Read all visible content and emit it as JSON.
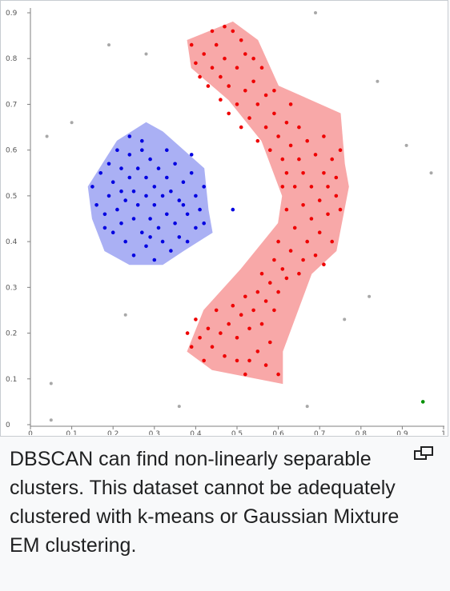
{
  "figure": {
    "caption": "DBSCAN can find non-linearly separable clusters. This dataset cannot be adequately clustered with k-means or Gaussian Mixture EM clustering.",
    "enlarge_icon": "enlarge-icon"
  },
  "chart_data": {
    "type": "scatter",
    "title": "",
    "xlabel": "",
    "ylabel": "",
    "xlim": [
      0,
      1
    ],
    "ylim": [
      0,
      0.9
    ],
    "xticks": [
      "0",
      "0.1",
      "0.2",
      "0.3",
      "0.4",
      "0.5",
      "0.6",
      "0.7",
      "0.8",
      "0.9",
      "1"
    ],
    "yticks": [
      "0",
      "0.1",
      "0.2",
      "0.3",
      "0.4",
      "0.5",
      "0.6",
      "0.7",
      "0.8",
      "0.9"
    ],
    "grid": false,
    "colors": {
      "cluster_1": "#0000e0",
      "cluster_2": "#ee0000",
      "cluster_3": "#009000",
      "noise": "#a8a8a8",
      "hull_1": "#aab0f4",
      "hull_2": "#f8a8a8"
    },
    "hulls": [
      {
        "cluster": "cluster_1",
        "polygon": [
          [
            0.14,
            0.52
          ],
          [
            0.21,
            0.62
          ],
          [
            0.28,
            0.66
          ],
          [
            0.32,
            0.64
          ],
          [
            0.42,
            0.56
          ],
          [
            0.43,
            0.47
          ],
          [
            0.44,
            0.42
          ],
          [
            0.37,
            0.38
          ],
          [
            0.32,
            0.35
          ],
          [
            0.24,
            0.35
          ],
          [
            0.18,
            0.38
          ],
          [
            0.15,
            0.45
          ]
        ]
      },
      {
        "cluster": "cluster_2",
        "polygon": [
          [
            0.38,
            0.84
          ],
          [
            0.49,
            0.88
          ],
          [
            0.55,
            0.84
          ],
          [
            0.6,
            0.74
          ],
          [
            0.75,
            0.68
          ],
          [
            0.76,
            0.57
          ],
          [
            0.77,
            0.52
          ],
          [
            0.74,
            0.38
          ],
          [
            0.68,
            0.33
          ],
          [
            0.61,
            0.16
          ],
          [
            0.61,
            0.09
          ],
          [
            0.44,
            0.12
          ],
          [
            0.38,
            0.16
          ],
          [
            0.42,
            0.25
          ],
          [
            0.51,
            0.34
          ],
          [
            0.6,
            0.44
          ],
          [
            0.61,
            0.5
          ],
          [
            0.56,
            0.62
          ],
          [
            0.48,
            0.71
          ],
          [
            0.39,
            0.78
          ]
        ]
      }
    ],
    "series": [
      {
        "name": "",
        "color_key": "cluster_1",
        "points": [
          [
            0.15,
            0.52
          ],
          [
            0.16,
            0.48
          ],
          [
            0.17,
            0.55
          ],
          [
            0.18,
            0.43
          ],
          [
            0.19,
            0.5
          ],
          [
            0.19,
            0.57
          ],
          [
            0.2,
            0.42
          ],
          [
            0.2,
            0.53
          ],
          [
            0.21,
            0.47
          ],
          [
            0.21,
            0.6
          ],
          [
            0.22,
            0.44
          ],
          [
            0.22,
            0.51
          ],
          [
            0.22,
            0.56
          ],
          [
            0.23,
            0.4
          ],
          [
            0.23,
            0.49
          ],
          [
            0.24,
            0.54
          ],
          [
            0.24,
            0.59
          ],
          [
            0.25,
            0.37
          ],
          [
            0.25,
            0.45
          ],
          [
            0.25,
            0.51
          ],
          [
            0.26,
            0.48
          ],
          [
            0.26,
            0.56
          ],
          [
            0.27,
            0.42
          ],
          [
            0.27,
            0.6
          ],
          [
            0.28,
            0.39
          ],
          [
            0.28,
            0.5
          ],
          [
            0.28,
            0.54
          ],
          [
            0.29,
            0.45
          ],
          [
            0.29,
            0.58
          ],
          [
            0.3,
            0.36
          ],
          [
            0.3,
            0.48
          ],
          [
            0.3,
            0.52
          ],
          [
            0.31,
            0.43
          ],
          [
            0.31,
            0.56
          ],
          [
            0.32,
            0.4
          ],
          [
            0.32,
            0.5
          ],
          [
            0.33,
            0.46
          ],
          [
            0.33,
            0.54
          ],
          [
            0.34,
            0.38
          ],
          [
            0.34,
            0.51
          ],
          [
            0.35,
            0.44
          ],
          [
            0.35,
            0.57
          ],
          [
            0.36,
            0.41
          ],
          [
            0.36,
            0.49
          ],
          [
            0.37,
            0.53
          ],
          [
            0.38,
            0.4
          ],
          [
            0.38,
            0.46
          ],
          [
            0.39,
            0.55
          ],
          [
            0.4,
            0.43
          ],
          [
            0.4,
            0.5
          ],
          [
            0.41,
            0.47
          ],
          [
            0.42,
            0.52
          ],
          [
            0.42,
            0.44
          ],
          [
            0.27,
            0.62
          ],
          [
            0.24,
            0.63
          ],
          [
            0.39,
            0.59
          ],
          [
            0.18,
            0.46
          ],
          [
            0.33,
            0.6
          ],
          [
            0.37,
            0.48
          ],
          [
            0.29,
            0.41
          ],
          [
            0.49,
            0.47
          ]
        ]
      },
      {
        "name": "",
        "color_key": "cluster_2",
        "points": [
          [
            0.39,
            0.83
          ],
          [
            0.4,
            0.79
          ],
          [
            0.41,
            0.76
          ],
          [
            0.42,
            0.81
          ],
          [
            0.43,
            0.74
          ],
          [
            0.44,
            0.78
          ],
          [
            0.45,
            0.83
          ],
          [
            0.46,
            0.71
          ],
          [
            0.46,
            0.76
          ],
          [
            0.47,
            0.8
          ],
          [
            0.48,
            0.68
          ],
          [
            0.48,
            0.74
          ],
          [
            0.49,
            0.86
          ],
          [
            0.5,
            0.7
          ],
          [
            0.5,
            0.78
          ],
          [
            0.51,
            0.65
          ],
          [
            0.52,
            0.73
          ],
          [
            0.52,
            0.81
          ],
          [
            0.53,
            0.67
          ],
          [
            0.54,
            0.75
          ],
          [
            0.55,
            0.62
          ],
          [
            0.55,
            0.7
          ],
          [
            0.56,
            0.78
          ],
          [
            0.57,
            0.65
          ],
          [
            0.57,
            0.72
          ],
          [
            0.58,
            0.6
          ],
          [
            0.59,
            0.68
          ],
          [
            0.6,
            0.63
          ],
          [
            0.61,
            0.58
          ],
          [
            0.62,
            0.66
          ],
          [
            0.62,
            0.55
          ],
          [
            0.63,
            0.61
          ],
          [
            0.64,
            0.52
          ],
          [
            0.65,
            0.58
          ],
          [
            0.65,
            0.65
          ],
          [
            0.66,
            0.48
          ],
          [
            0.66,
            0.55
          ],
          [
            0.67,
            0.62
          ],
          [
            0.68,
            0.45
          ],
          [
            0.68,
            0.52
          ],
          [
            0.69,
            0.59
          ],
          [
            0.7,
            0.42
          ],
          [
            0.7,
            0.49
          ],
          [
            0.71,
            0.55
          ],
          [
            0.71,
            0.63
          ],
          [
            0.72,
            0.46
          ],
          [
            0.72,
            0.52
          ],
          [
            0.73,
            0.58
          ],
          [
            0.73,
            0.4
          ],
          [
            0.74,
            0.5
          ],
          [
            0.74,
            0.54
          ],
          [
            0.75,
            0.47
          ],
          [
            0.75,
            0.6
          ],
          [
            0.64,
            0.43
          ],
          [
            0.62,
            0.47
          ],
          [
            0.61,
            0.52
          ],
          [
            0.67,
            0.4
          ],
          [
            0.66,
            0.36
          ],
          [
            0.63,
            0.38
          ],
          [
            0.61,
            0.34
          ],
          [
            0.6,
            0.4
          ],
          [
            0.59,
            0.36
          ],
          [
            0.58,
            0.31
          ],
          [
            0.57,
            0.27
          ],
          [
            0.56,
            0.33
          ],
          [
            0.55,
            0.29
          ],
          [
            0.54,
            0.25
          ],
          [
            0.53,
            0.21
          ],
          [
            0.52,
            0.28
          ],
          [
            0.51,
            0.24
          ],
          [
            0.5,
            0.19
          ],
          [
            0.49,
            0.26
          ],
          [
            0.48,
            0.22
          ],
          [
            0.47,
            0.15
          ],
          [
            0.46,
            0.2
          ],
          [
            0.45,
            0.25
          ],
          [
            0.44,
            0.17
          ],
          [
            0.43,
            0.21
          ],
          [
            0.42,
            0.14
          ],
          [
            0.41,
            0.19
          ],
          [
            0.4,
            0.23
          ],
          [
            0.39,
            0.17
          ],
          [
            0.38,
            0.2
          ],
          [
            0.58,
            0.18
          ],
          [
            0.57,
            0.13
          ],
          [
            0.6,
            0.11
          ],
          [
            0.55,
            0.16
          ],
          [
            0.53,
            0.14
          ],
          [
            0.52,
            0.11
          ],
          [
            0.5,
            0.14
          ],
          [
            0.56,
            0.22
          ],
          [
            0.59,
            0.25
          ],
          [
            0.6,
            0.29
          ],
          [
            0.62,
            0.32
          ],
          [
            0.65,
            0.33
          ],
          [
            0.69,
            0.37
          ],
          [
            0.71,
            0.35
          ],
          [
            0.63,
            0.7
          ],
          [
            0.59,
            0.73
          ],
          [
            0.54,
            0.8
          ],
          [
            0.51,
            0.84
          ],
          [
            0.47,
            0.87
          ],
          [
            0.44,
            0.86
          ]
        ]
      },
      {
        "name": "",
        "color_key": "cluster_3",
        "points": [
          [
            0.95,
            0.05
          ]
        ]
      },
      {
        "name": "",
        "color_key": "noise",
        "points": [
          [
            0.04,
            0.63
          ],
          [
            0.05,
            0.01
          ],
          [
            0.05,
            0.09
          ],
          [
            0.1,
            0.66
          ],
          [
            0.19,
            0.83
          ],
          [
            0.23,
            0.24
          ],
          [
            0.28,
            0.81
          ],
          [
            0.36,
            0.04
          ],
          [
            0.67,
            0.04
          ],
          [
            0.69,
            0.9
          ],
          [
            0.76,
            0.23
          ],
          [
            0.82,
            0.28
          ],
          [
            0.84,
            0.75
          ],
          [
            0.91,
            0.61
          ],
          [
            0.97,
            0.55
          ]
        ]
      }
    ]
  }
}
